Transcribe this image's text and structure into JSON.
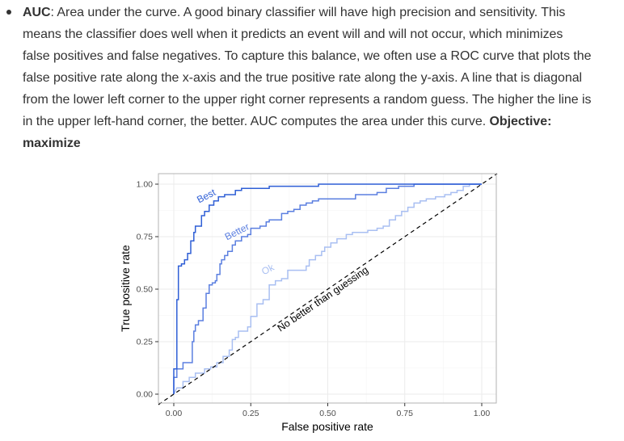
{
  "paragraph": {
    "term": "AUC",
    "lines": [
      ": Area under the curve. A good binary classifier will have high precision and sensitivity. This",
      "means the classifier does well when it predicts an event will and will not occur, which minimizes",
      "false positives and false negatives. To capture this balance, we often use a ROC curve that plots the",
      "false positive rate along the x-axis and the true positive rate along the y-axis. A line that is diagonal",
      "from the lower left corner to the upper right corner represents a random guess. The higher the line is",
      "in the upper left-hand corner, the better. AUC computes the area under this curve. "
    ],
    "objective_label": "Objective:",
    "objective_value": "maximize"
  },
  "chart_data": {
    "type": "line",
    "xlabel": "False positive rate",
    "ylabel": "True positive rate",
    "xlim": [
      0,
      1
    ],
    "ylim": [
      0,
      1
    ],
    "x_ticks": [
      "0.00",
      "0.25",
      "0.50",
      "0.75",
      "1.00"
    ],
    "y_ticks": [
      "0.00",
      "0.25",
      "0.50",
      "0.75",
      "1.00"
    ],
    "grid": true,
    "colors": {
      "best": "#2f5fd6",
      "better": "#5b7fe0",
      "ok": "#a9bff2",
      "diagonal": "#000000",
      "grid": "#ebebeb",
      "panel_border": "#b3b3b3"
    },
    "series": [
      {
        "name": "Best",
        "points": [
          [
            0,
            0
          ],
          [
            0,
            0.12
          ],
          [
            0.01,
            0.12
          ],
          [
            0.01,
            0.18
          ],
          [
            0.01,
            0.3
          ],
          [
            0.01,
            0.45
          ],
          [
            0.015,
            0.45
          ],
          [
            0.015,
            0.61
          ],
          [
            0.025,
            0.61
          ],
          [
            0.025,
            0.62
          ],
          [
            0.035,
            0.62
          ],
          [
            0.035,
            0.64
          ],
          [
            0.045,
            0.64
          ],
          [
            0.045,
            0.67
          ],
          [
            0.055,
            0.67
          ],
          [
            0.055,
            0.73
          ],
          [
            0.065,
            0.73
          ],
          [
            0.065,
            0.77
          ],
          [
            0.07,
            0.77
          ],
          [
            0.07,
            0.8
          ],
          [
            0.08,
            0.8
          ],
          [
            0.09,
            0.8
          ],
          [
            0.09,
            0.85
          ],
          [
            0.1,
            0.85
          ],
          [
            0.1,
            0.87
          ],
          [
            0.115,
            0.87
          ],
          [
            0.115,
            0.9
          ],
          [
            0.13,
            0.9
          ],
          [
            0.13,
            0.92
          ],
          [
            0.145,
            0.92
          ],
          [
            0.145,
            0.94
          ],
          [
            0.165,
            0.94
          ],
          [
            0.165,
            0.95
          ],
          [
            0.2,
            0.95
          ],
          [
            0.2,
            0.97
          ],
          [
            0.22,
            0.97
          ],
          [
            0.22,
            0.98
          ],
          [
            0.31,
            0.98
          ],
          [
            0.31,
            0.99
          ],
          [
            0.47,
            0.99
          ],
          [
            0.47,
            1.0
          ],
          [
            1,
            1
          ]
        ]
      },
      {
        "name": "Better",
        "points": [
          [
            0,
            0
          ],
          [
            0,
            0.08
          ],
          [
            0.01,
            0.08
          ],
          [
            0.01,
            0.12
          ],
          [
            0.03,
            0.12
          ],
          [
            0.03,
            0.15
          ],
          [
            0.06,
            0.15
          ],
          [
            0.06,
            0.25
          ],
          [
            0.065,
            0.25
          ],
          [
            0.065,
            0.3
          ],
          [
            0.07,
            0.3
          ],
          [
            0.07,
            0.33
          ],
          [
            0.08,
            0.33
          ],
          [
            0.08,
            0.35
          ],
          [
            0.095,
            0.35
          ],
          [
            0.095,
            0.41
          ],
          [
            0.105,
            0.41
          ],
          [
            0.105,
            0.48
          ],
          [
            0.115,
            0.48
          ],
          [
            0.115,
            0.52
          ],
          [
            0.125,
            0.52
          ],
          [
            0.125,
            0.53
          ],
          [
            0.135,
            0.53
          ],
          [
            0.135,
            0.54
          ],
          [
            0.14,
            0.54
          ],
          [
            0.14,
            0.57
          ],
          [
            0.15,
            0.57
          ],
          [
            0.15,
            0.62
          ],
          [
            0.155,
            0.62
          ],
          [
            0.155,
            0.64
          ],
          [
            0.165,
            0.64
          ],
          [
            0.165,
            0.66
          ],
          [
            0.175,
            0.66
          ],
          [
            0.175,
            0.68
          ],
          [
            0.19,
            0.68
          ],
          [
            0.19,
            0.71
          ],
          [
            0.2,
            0.71
          ],
          [
            0.2,
            0.73
          ],
          [
            0.22,
            0.73
          ],
          [
            0.22,
            0.75
          ],
          [
            0.24,
            0.75
          ],
          [
            0.24,
            0.76
          ],
          [
            0.25,
            0.76
          ],
          [
            0.25,
            0.79
          ],
          [
            0.28,
            0.79
          ],
          [
            0.28,
            0.8
          ],
          [
            0.3,
            0.8
          ],
          [
            0.3,
            0.82
          ],
          [
            0.31,
            0.82
          ],
          [
            0.31,
            0.83
          ],
          [
            0.35,
            0.83
          ],
          [
            0.35,
            0.86
          ],
          [
            0.37,
            0.86
          ],
          [
            0.37,
            0.87
          ],
          [
            0.39,
            0.87
          ],
          [
            0.39,
            0.88
          ],
          [
            0.41,
            0.88
          ],
          [
            0.41,
            0.9
          ],
          [
            0.43,
            0.9
          ],
          [
            0.43,
            0.91
          ],
          [
            0.45,
            0.91
          ],
          [
            0.45,
            0.92
          ],
          [
            0.47,
            0.92
          ],
          [
            0.47,
            0.93
          ],
          [
            0.59,
            0.93
          ],
          [
            0.59,
            0.95
          ],
          [
            0.66,
            0.95
          ],
          [
            0.66,
            0.96
          ],
          [
            0.69,
            0.96
          ],
          [
            0.69,
            0.98
          ],
          [
            0.73,
            0.98
          ],
          [
            0.73,
            0.99
          ],
          [
            0.78,
            0.99
          ],
          [
            0.78,
            1.0
          ],
          [
            0.86,
            1.0
          ],
          [
            1,
            1
          ]
        ]
      },
      {
        "name": "Ok",
        "points": [
          [
            0,
            0
          ],
          [
            0.01,
            0.03
          ],
          [
            0.03,
            0.03
          ],
          [
            0.03,
            0.06
          ],
          [
            0.05,
            0.06
          ],
          [
            0.05,
            0.08
          ],
          [
            0.07,
            0.08
          ],
          [
            0.07,
            0.1
          ],
          [
            0.1,
            0.1
          ],
          [
            0.1,
            0.12
          ],
          [
            0.12,
            0.12
          ],
          [
            0.12,
            0.13
          ],
          [
            0.14,
            0.13
          ],
          [
            0.14,
            0.15
          ],
          [
            0.16,
            0.15
          ],
          [
            0.16,
            0.18
          ],
          [
            0.18,
            0.18
          ],
          [
            0.18,
            0.21
          ],
          [
            0.19,
            0.21
          ],
          [
            0.19,
            0.26
          ],
          [
            0.2,
            0.26
          ],
          [
            0.2,
            0.27
          ],
          [
            0.21,
            0.27
          ],
          [
            0.21,
            0.3
          ],
          [
            0.24,
            0.3
          ],
          [
            0.24,
            0.32
          ],
          [
            0.25,
            0.32
          ],
          [
            0.25,
            0.37
          ],
          [
            0.27,
            0.37
          ],
          [
            0.27,
            0.43
          ],
          [
            0.29,
            0.43
          ],
          [
            0.29,
            0.45
          ],
          [
            0.31,
            0.45
          ],
          [
            0.31,
            0.52
          ],
          [
            0.33,
            0.52
          ],
          [
            0.33,
            0.54
          ],
          [
            0.35,
            0.54
          ],
          [
            0.35,
            0.55
          ],
          [
            0.37,
            0.55
          ],
          [
            0.37,
            0.59
          ],
          [
            0.43,
            0.59
          ],
          [
            0.43,
            0.61
          ],
          [
            0.44,
            0.61
          ],
          [
            0.44,
            0.64
          ],
          [
            0.46,
            0.64
          ],
          [
            0.46,
            0.66
          ],
          [
            0.48,
            0.66
          ],
          [
            0.48,
            0.68
          ],
          [
            0.49,
            0.68
          ],
          [
            0.49,
            0.7
          ],
          [
            0.51,
            0.7
          ],
          [
            0.51,
            0.72
          ],
          [
            0.53,
            0.72
          ],
          [
            0.53,
            0.74
          ],
          [
            0.56,
            0.74
          ],
          [
            0.56,
            0.76
          ],
          [
            0.58,
            0.76
          ],
          [
            0.58,
            0.77
          ],
          [
            0.63,
            0.77
          ],
          [
            0.63,
            0.78
          ],
          [
            0.66,
            0.78
          ],
          [
            0.66,
            0.79
          ],
          [
            0.68,
            0.79
          ],
          [
            0.68,
            0.8
          ],
          [
            0.7,
            0.8
          ],
          [
            0.7,
            0.83
          ],
          [
            0.72,
            0.83
          ],
          [
            0.72,
            0.85
          ],
          [
            0.74,
            0.85
          ],
          [
            0.74,
            0.87
          ],
          [
            0.76,
            0.87
          ],
          [
            0.76,
            0.89
          ],
          [
            0.78,
            0.89
          ],
          [
            0.78,
            0.91
          ],
          [
            0.8,
            0.91
          ],
          [
            0.8,
            0.92
          ],
          [
            0.82,
            0.92
          ],
          [
            0.82,
            0.93
          ],
          [
            0.85,
            0.93
          ],
          [
            0.85,
            0.94
          ],
          [
            0.88,
            0.94
          ],
          [
            0.88,
            0.95
          ],
          [
            0.9,
            0.95
          ],
          [
            0.9,
            0.96
          ],
          [
            0.92,
            0.96
          ],
          [
            0.92,
            0.97
          ],
          [
            0.94,
            0.97
          ],
          [
            0.94,
            0.99
          ],
          [
            0.96,
            0.99
          ],
          [
            0.96,
            1.0
          ],
          [
            1,
            1
          ]
        ]
      }
    ],
    "annotations": [
      {
        "text": "Best",
        "series": "Best"
      },
      {
        "text": "Better",
        "series": "Better"
      },
      {
        "text": "Ok",
        "series": "Ok"
      },
      {
        "text": "No better than guessing",
        "series": "diagonal"
      }
    ]
  }
}
